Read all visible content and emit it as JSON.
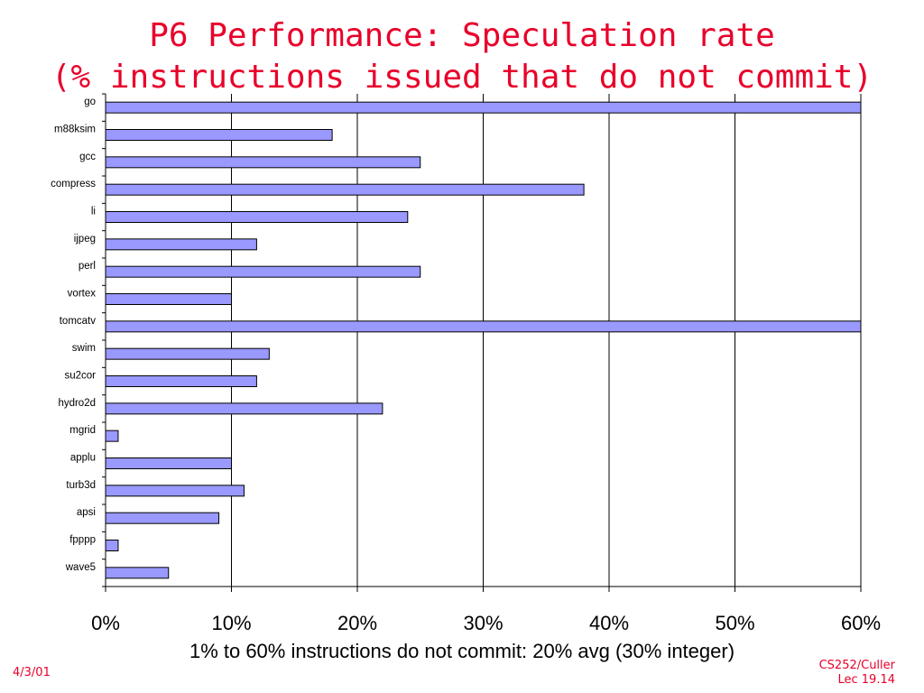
{
  "slide": {
    "title_line1": "P6 Performance: Speculation rate",
    "title_line2": "(% instructions issued that do not commit)",
    "caption": "1% to 60% instructions do not commit: 20% avg (30% integer)",
    "footer_date": "4/3/01",
    "footer_course": "CS252/Culler",
    "footer_lecture": "Lec 19.14",
    "accent_color": "#e8002a"
  },
  "chart_data": {
    "type": "bar",
    "orientation": "horizontal",
    "categories": [
      "go",
      "m88ksim",
      "gcc",
      "compress",
      "li",
      "ijpeg",
      "perl",
      "vortex",
      "tomcatv",
      "swim",
      "su2cor",
      "hydro2d",
      "mgrid",
      "applu",
      "turb3d",
      "apsi",
      "fpppp",
      "wave5"
    ],
    "values": [
      60,
      18,
      25,
      38,
      24,
      12,
      25,
      10,
      60,
      13,
      12,
      22,
      1,
      10,
      11,
      9,
      1,
      5
    ],
    "value_unit": "%",
    "xlim": [
      0,
      60
    ],
    "xticks": [
      "0%",
      "10%",
      "20%",
      "30%",
      "40%",
      "50%",
      "60%"
    ],
    "grid": true,
    "bar_color": "#9999ff",
    "title": "",
    "xlabel": "",
    "ylabel": ""
  }
}
